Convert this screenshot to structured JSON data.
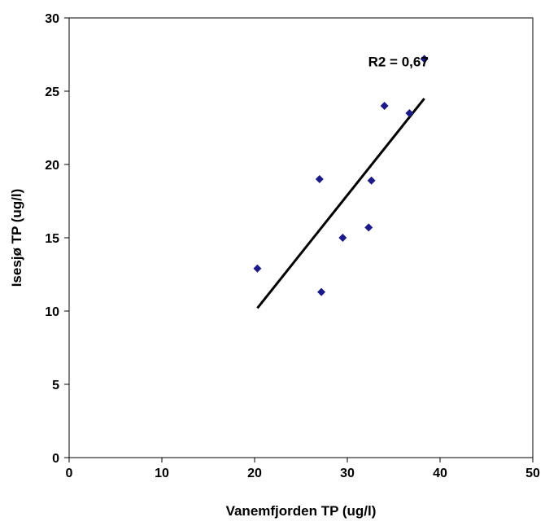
{
  "chart_data": {
    "type": "scatter",
    "title": "",
    "xlabel": "Vanemfjorden TP (ug/l)",
    "ylabel": "Isesjø TP (ug/l)",
    "xlim": [
      0,
      50
    ],
    "ylim": [
      0,
      30
    ],
    "xticks": [
      "0",
      "10",
      "20",
      "30",
      "40",
      "50"
    ],
    "yticks": [
      "0",
      "5",
      "10",
      "15",
      "20",
      "25",
      "30"
    ],
    "grid": false,
    "legend": "none",
    "marker_color": "#1a1a8c",
    "series": [
      {
        "points": [
          {
            "x": 20.3,
            "y": 12.9
          },
          {
            "x": 27.0,
            "y": 19.0
          },
          {
            "x": 27.2,
            "y": 11.3
          },
          {
            "x": 29.5,
            "y": 15.0
          },
          {
            "x": 32.3,
            "y": 15.7
          },
          {
            "x": 32.6,
            "y": 18.9
          },
          {
            "x": 34.0,
            "y": 24.0
          },
          {
            "x": 36.7,
            "y": 23.5
          },
          {
            "x": 38.3,
            "y": 27.2
          }
        ]
      }
    ],
    "trendline": {
      "x": [
        20.3,
        38.3
      ],
      "y": [
        10.2,
        24.5
      ],
      "color": "#000000"
    },
    "annotations": [
      {
        "text": "R2 = 0,67",
        "x": 35.5,
        "y": 26.7
      }
    ]
  }
}
